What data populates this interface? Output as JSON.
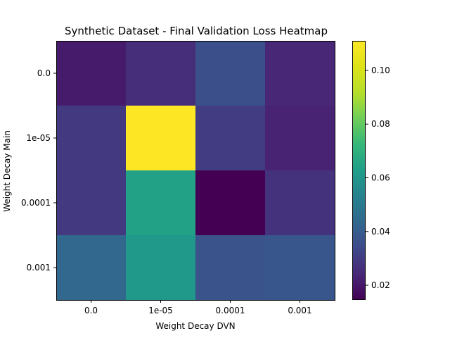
{
  "chart_data": {
    "type": "heatmap",
    "title": "Synthetic Dataset - Final Validation Loss Heatmap",
    "xlabel": "Weight Decay DVN",
    "ylabel": "Weight Decay Main",
    "x_categories": [
      "0.0",
      "1e-05",
      "0.0001",
      "0.001"
    ],
    "y_categories": [
      "0.0",
      "1e-05",
      "0.0001",
      "0.001"
    ],
    "values": [
      [
        0.021,
        0.026,
        0.036,
        0.024
      ],
      [
        0.029,
        0.111,
        0.03,
        0.023
      ],
      [
        0.029,
        0.064,
        0.0145,
        0.027
      ],
      [
        0.043,
        0.061,
        0.037,
        0.038
      ]
    ],
    "colorscale": "viridis",
    "vmin": 0.0145,
    "vmax": 0.111,
    "colorbar_ticks": [
      0.02,
      0.04,
      0.06,
      0.08,
      0.1
    ],
    "colorbar_tick_labels": [
      "0.02",
      "0.04",
      "0.06",
      "0.08",
      "0.10"
    ]
  }
}
